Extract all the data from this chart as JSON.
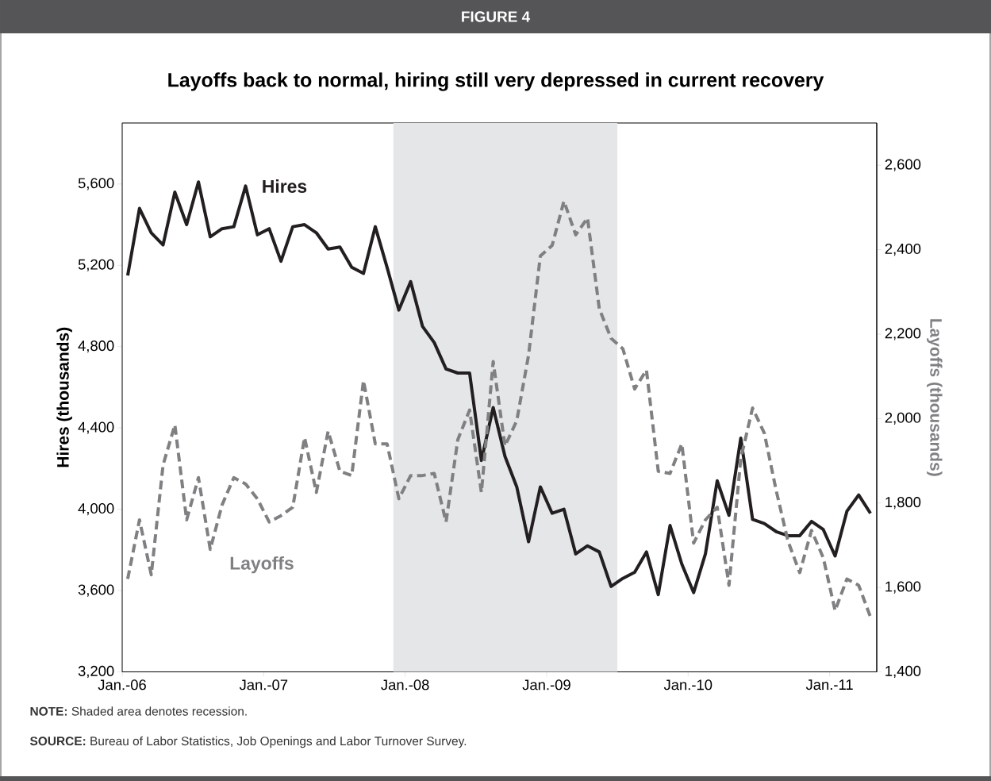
{
  "chart_data": {
    "type": "line",
    "title": "Layoffs back to normal, hiring still very depressed in current recovery",
    "ylabel": "Hires (thousands)",
    "y2label": "Layoffs (thousands)",
    "annotations": [
      "FIGURE 4",
      "**NOTE:** Shaded area denotes recession.",
      "**SOURCE:** Bureau of Labor Statistics, Job Openings and Labor Turnover Survey."
    ],
    "x": [
      "2006-01-15",
      "2006-02-15",
      "2006-03-15",
      "2006-04-15",
      "2006-05-15",
      "2006-06-15",
      "2006-07-15",
      "2006-08-15",
      "2006-09-15",
      "2006-10-15",
      "2006-11-15",
      "2006-12-15",
      "2007-01-15",
      "2007-02-15",
      "2007-03-15",
      "2007-04-15",
      "2007-05-15",
      "2007-06-15",
      "2007-07-15",
      "2007-08-15",
      "2007-09-15",
      "2007-10-15",
      "2007-11-15",
      "2007-12-15",
      "2008-01-15",
      "2008-02-15",
      "2008-03-15",
      "2008-04-15",
      "2008-05-15",
      "2008-06-15",
      "2008-07-15",
      "2008-08-15",
      "2008-09-15",
      "2008-10-15",
      "2008-11-15",
      "2008-12-15",
      "2009-01-15",
      "2009-02-15",
      "2009-03-15",
      "2009-04-15",
      "2009-05-15",
      "2009-06-15",
      "2009-07-15",
      "2009-08-15",
      "2009-09-15",
      "2009-10-15",
      "2009-11-15",
      "2009-12-15",
      "2010-01-15",
      "2010-02-15",
      "2010-03-15",
      "2010-04-15",
      "2010-05-15",
      "2010-06-15",
      "2010-07-15",
      "2010-08-15",
      "2010-09-15",
      "2010-10-15",
      "2010-11-15",
      "2010-12-15",
      "2011-01-15",
      "2011-02-15",
      "2011-03-15",
      "2011-04-15"
    ],
    "series": [
      {
        "name": "Hires",
        "color": "#231f20",
        "line_style": "solid",
        "values": [
          5150,
          5480,
          5360,
          5300,
          5560,
          5400,
          5610,
          5340,
          5380,
          5390,
          5590,
          5350,
          5380,
          5220,
          5390,
          5400,
          5360,
          5280,
          5290,
          5190,
          5160,
          5390,
          5190,
          4980,
          5120,
          4900,
          4820,
          4690,
          4670,
          4670,
          4240,
          4500,
          4260,
          4110,
          3840,
          4110,
          3980,
          4000,
          3780,
          3820,
          3790,
          3620,
          3660,
          3690,
          3790,
          3580,
          3920,
          3730,
          3590,
          3780,
          4140,
          3970,
          4350,
          3950,
          3930,
          3890,
          3870,
          3870,
          3940,
          3900,
          3770,
          3990,
          4070,
          3980
        ]
      },
      {
        "name": "Layoffs",
        "color": "#808083",
        "line_style": "dashed",
        "axis": "y2",
        "values": [
          1620,
          1760,
          1630,
          1890,
          1985,
          1760,
          1860,
          1690,
          1795,
          1860,
          1845,
          1810,
          1755,
          1770,
          1790,
          1955,
          1825,
          1970,
          1875,
          1865,
          2090,
          1940,
          1940,
          1810,
          1865,
          1865,
          1870,
          1755,
          1950,
          2020,
          1825,
          2135,
          1935,
          1995,
          2150,
          2385,
          2410,
          2515,
          2435,
          2475,
          2260,
          2190,
          2165,
          2070,
          2115,
          1875,
          1870,
          1940,
          1705,
          1760,
          1790,
          1605,
          1905,
          2025,
          1965,
          1830,
          1710,
          1635,
          1735,
          1670,
          1545,
          1620,
          1605,
          1530
        ]
      }
    ],
    "xlim": [
      "2006-01-01",
      "2011-05-01"
    ],
    "xticks": [
      {
        "value": "2006-01-01",
        "label": "Jan.-06"
      },
      {
        "value": "2007-01-01",
        "label": "Jan.-07"
      },
      {
        "value": "2008-01-01",
        "label": "Jan.-08"
      },
      {
        "value": "2009-01-01",
        "label": "Jan.-09"
      },
      {
        "value": "2010-01-01",
        "label": "Jan.-10"
      },
      {
        "value": "2011-01-01",
        "label": "Jan.-11"
      }
    ],
    "ylim": [
      3200,
      5900
    ],
    "yticks": [
      {
        "value": 3200,
        "label": "3,200"
      },
      {
        "value": 3600,
        "label": "3,600"
      },
      {
        "value": 4000,
        "label": "4,000"
      },
      {
        "value": 4400,
        "label": "4,400"
      },
      {
        "value": 4800,
        "label": "4,800"
      },
      {
        "value": 5200,
        "label": "5,200"
      },
      {
        "value": 5600,
        "label": "5,600"
      }
    ],
    "y2lim": [
      1400,
      2700
    ],
    "y2ticks": [
      {
        "value": 1400,
        "label": "1,400"
      },
      {
        "value": 1600,
        "label": "1,600"
      },
      {
        "value": 1800,
        "label": "1,800"
      },
      {
        "value": 2000,
        "label": "2,000"
      },
      {
        "value": 2200,
        "label": "2,200"
      },
      {
        "value": 2400,
        "label": "2,400"
      },
      {
        "value": 2600,
        "label": "2,600"
      }
    ],
    "bands": [
      {
        "axis": "x",
        "from": "2007-12-01",
        "to": "2009-07-01",
        "color": "#e5e6e8"
      }
    ],
    "grid": false,
    "marker": "none"
  }
}
